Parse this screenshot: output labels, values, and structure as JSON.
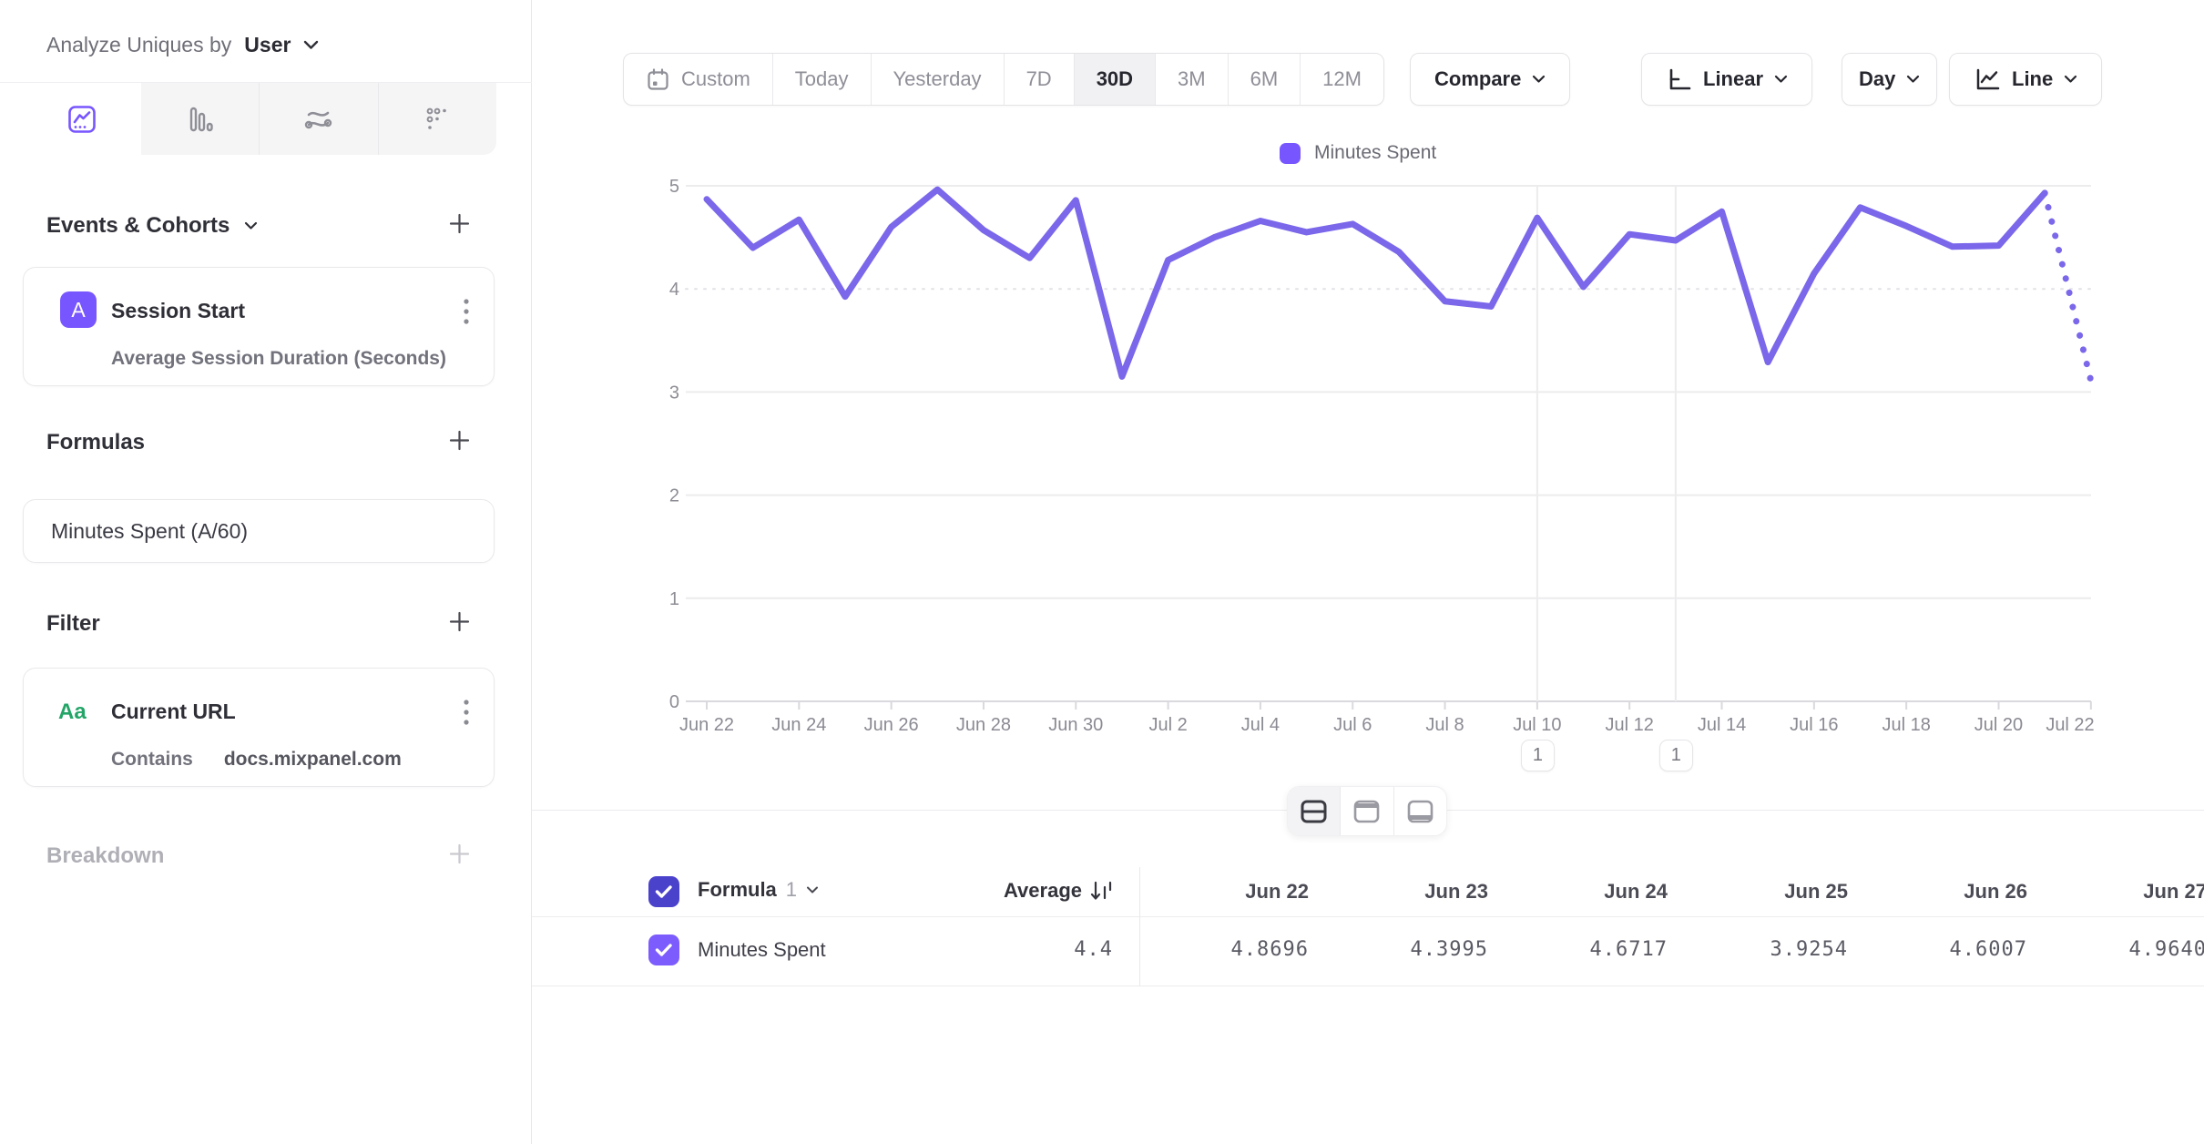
{
  "colors": {
    "accent": "#7856FF",
    "line": "#7A67EA",
    "header_checkbox": "#4B42CC",
    "row_checkbox": "#7C5CFC",
    "filter_badge_green": "#23A567",
    "active_segment_bg": "#F1F1F3"
  },
  "sidebar": {
    "analyze_label": "Analyze Uniques by",
    "analyze_value": "User",
    "tabs": [
      {
        "icon": "insights-line-icon",
        "active": true
      },
      {
        "icon": "bar-chart-icon",
        "active": false
      },
      {
        "icon": "flows-icon",
        "active": false
      },
      {
        "icon": "retention-grid-icon",
        "active": false
      }
    ],
    "events_header": "Events & Cohorts",
    "event_card": {
      "badge": "A",
      "title": "Session Start",
      "subtitle": "Average Session Duration (Seconds)"
    },
    "formulas_header": "Formulas",
    "formula_card": {
      "title": "Minutes Spent (A/60)"
    },
    "filter_header": "Filter",
    "filter_card": {
      "badge": "Aa",
      "title": "Current URL",
      "operator": "Contains",
      "value": "docs.mixpanel.com"
    },
    "breakdown_header": "Breakdown"
  },
  "toolbar": {
    "date_ranges": [
      "Custom",
      "Today",
      "Yesterday",
      "7D",
      "30D",
      "3M",
      "6M",
      "12M"
    ],
    "active_range": "30D",
    "compare_label": "Compare",
    "scale_label": "Linear",
    "granularity_label": "Day",
    "chart_type_label": "Line"
  },
  "chart_data": {
    "type": "line",
    "title": "",
    "xlabel": "",
    "ylabel": "",
    "ylim": [
      0,
      5
    ],
    "yticks": [
      0,
      1,
      2,
      3,
      4,
      5
    ],
    "grid": "horizontal",
    "legend_position": "top-center",
    "legend": [
      {
        "label": "Minutes Spent",
        "color": "#7856FF"
      }
    ],
    "x": [
      "Jun 22",
      "Jun 23",
      "Jun 24",
      "Jun 25",
      "Jun 26",
      "Jun 27",
      "Jun 28",
      "Jun 29",
      "Jun 30",
      "Jul 1",
      "Jul 2",
      "Jul 3",
      "Jul 4",
      "Jul 5",
      "Jul 6",
      "Jul 7",
      "Jul 8",
      "Jul 9",
      "Jul 10",
      "Jul 11",
      "Jul 12",
      "Jul 13",
      "Jul 14",
      "Jul 15",
      "Jul 16",
      "Jul 17",
      "Jul 18",
      "Jul 19",
      "Jul 20",
      "Jul 21",
      "Jul 22"
    ],
    "x_label_every": 2,
    "series": [
      {
        "name": "Minutes Spent",
        "color": "#7A67EA",
        "values": [
          4.8696,
          4.3995,
          4.6717,
          3.9254,
          4.6007,
          4.964,
          4.57,
          4.3,
          4.86,
          3.15,
          4.28,
          4.5,
          4.66,
          4.55,
          4.63,
          4.36,
          3.88,
          3.83,
          4.69,
          4.02,
          4.53,
          4.47,
          4.75,
          3.29,
          4.15,
          4.79,
          4.61,
          4.41,
          4.42,
          4.93,
          3.11
        ],
        "last_segment_dotted": true
      }
    ],
    "annotations": [
      {
        "label": "1",
        "x_label": "Jul 10"
      },
      {
        "label": "1",
        "x_label": "Jul 13"
      }
    ]
  },
  "panel_modes": {
    "active": "split",
    "options": [
      "split-view",
      "chart-only-view",
      "table-only-view"
    ]
  },
  "table": {
    "group_label": "Formula",
    "group_index": "1",
    "average_header": "Average",
    "columns": [
      "Jun 22",
      "Jun 23",
      "Jun 24",
      "Jun 25",
      "Jun 26",
      "Jun 27"
    ],
    "rows": [
      {
        "label": "Minutes Spent",
        "average": "4.4",
        "values": [
          "4.8696",
          "4.3995",
          "4.6717",
          "3.9254",
          "4.6007",
          "4.9640"
        ]
      }
    ]
  }
}
